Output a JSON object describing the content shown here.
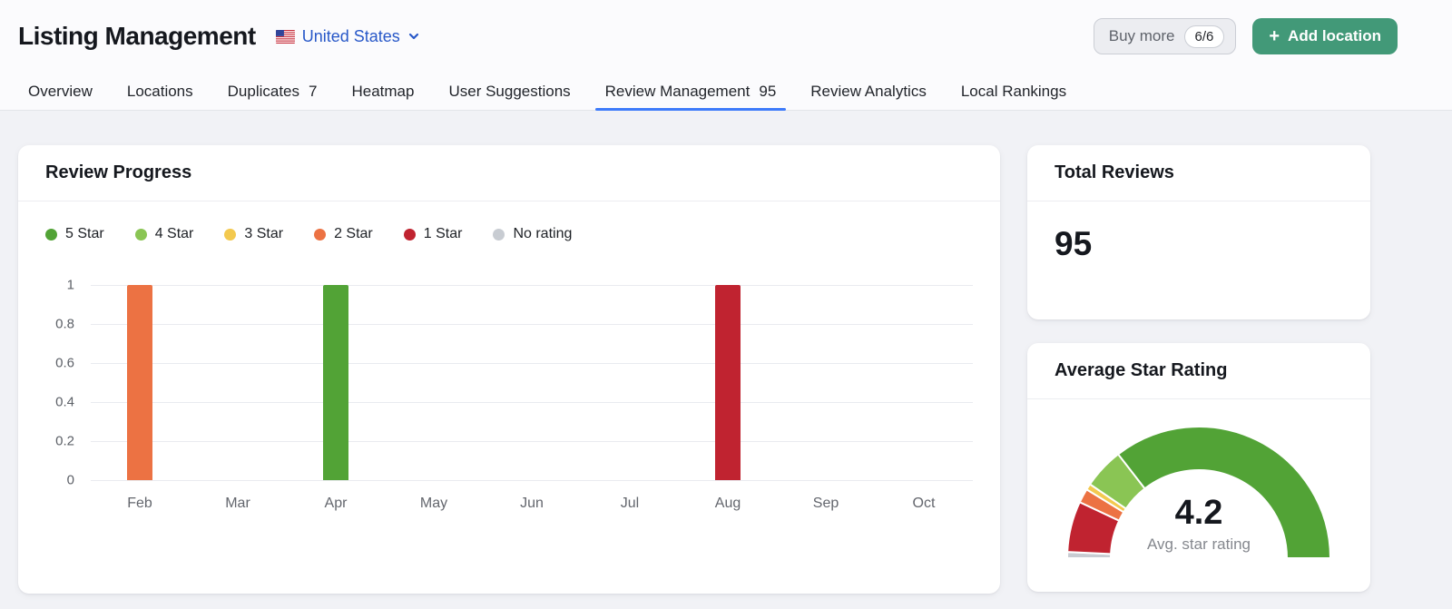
{
  "header": {
    "title": "Listing Management",
    "country": "United States",
    "buy_more_label": "Buy more",
    "quota": "6/6",
    "add_location_label": "Add location"
  },
  "tabs": [
    {
      "label": "Overview"
    },
    {
      "label": "Locations"
    },
    {
      "label": "Duplicates",
      "count": "7"
    },
    {
      "label": "Heatmap"
    },
    {
      "label": "User Suggestions"
    },
    {
      "label": "Review Management",
      "count": "95",
      "active": true
    },
    {
      "label": "Review Analytics"
    },
    {
      "label": "Local Rankings"
    }
  ],
  "review_progress": {
    "title": "Review Progress"
  },
  "total_reviews": {
    "title": "Total Reviews",
    "value": "95"
  },
  "average_star_rating": {
    "title": "Average Star Rating",
    "value": "4.2",
    "caption": "Avg. star rating"
  },
  "colors": {
    "five_star": "#52A336",
    "four_star": "#8AC554",
    "three_star": "#F3C94F",
    "two_star": "#EC7243",
    "one_star": "#C02330",
    "no_rating": "#C8CCD2",
    "accent_blue": "#3E7BFA",
    "accent_green": "#429978"
  },
  "chart_data": [
    {
      "type": "bar",
      "title": "Review Progress",
      "categories": [
        "Feb",
        "Mar",
        "Apr",
        "May",
        "Jun",
        "Jul",
        "Aug",
        "Sep",
        "Oct"
      ],
      "series": [
        {
          "name": "5 Star",
          "color": "#52A336",
          "values": [
            0,
            0,
            1,
            0,
            0,
            0,
            0,
            0,
            0
          ]
        },
        {
          "name": "4 Star",
          "color": "#8AC554",
          "values": [
            0,
            0,
            0,
            0,
            0,
            0,
            0,
            0,
            0
          ]
        },
        {
          "name": "3 Star",
          "color": "#F3C94F",
          "values": [
            0,
            0,
            0,
            0,
            0,
            0,
            0,
            0,
            0
          ]
        },
        {
          "name": "2 Star",
          "color": "#EC7243",
          "values": [
            1,
            0,
            0,
            0,
            0,
            0,
            0,
            0,
            0
          ]
        },
        {
          "name": "1 Star",
          "color": "#C02330",
          "values": [
            0,
            0,
            0,
            0,
            0,
            0,
            1,
            0,
            0
          ]
        },
        {
          "name": "No rating",
          "color": "#C8CCD2",
          "values": [
            0,
            0,
            0,
            0,
            0,
            0,
            0,
            0,
            0
          ]
        }
      ],
      "legend": [
        {
          "label": "5 Star",
          "color": "#52A336"
        },
        {
          "label": "4 Star",
          "color": "#8AC554"
        },
        {
          "label": "3 Star",
          "color": "#F3C94F"
        },
        {
          "label": "2 Star",
          "color": "#EC7243"
        },
        {
          "label": "1 Star",
          "color": "#C02330"
        },
        {
          "label": "No rating",
          "color": "#C8CCD2"
        }
      ],
      "yticks": [
        "1",
        "0.8",
        "0.6",
        "0.4",
        "0.2",
        "0"
      ],
      "ylim": [
        0,
        1
      ],
      "grid": true,
      "legend_position": "top-left"
    },
    {
      "type": "gauge",
      "value": "4.2",
      "caption": "Avg. star rating",
      "range_fraction_of_semicircle": 1,
      "segments": [
        {
          "name": "no-rating",
          "color": "#C8CCD2",
          "fraction": 0.015
        },
        {
          "name": "1-star",
          "color": "#C02330",
          "fraction": 0.125
        },
        {
          "name": "2-star",
          "color": "#EC7243",
          "fraction": 0.035
        },
        {
          "name": "3-star",
          "color": "#F3C94F",
          "fraction": 0.015
        },
        {
          "name": "4-star",
          "color": "#8AC554",
          "fraction": 0.1
        },
        {
          "name": "5-star",
          "color": "#52A336",
          "fraction": 0.71
        }
      ]
    }
  ]
}
